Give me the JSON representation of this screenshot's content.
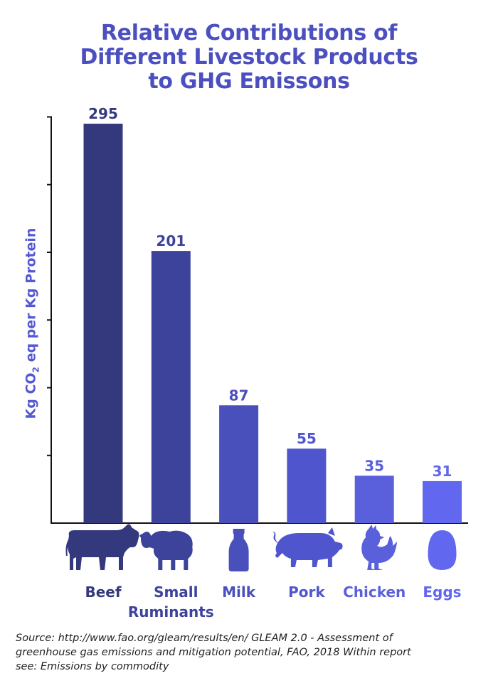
{
  "chart_data": {
    "type": "bar",
    "title_lines": [
      "Relative Contributions of",
      "Different Livestock Products",
      "to GHG Emissons"
    ],
    "ylabel_parts": [
      "Kg CO",
      "2",
      " eq per Kg Protein"
    ],
    "categories": [
      {
        "lines": [
          "Beef"
        ],
        "icon": "cow-icon",
        "color": "#34397d"
      },
      {
        "lines": [
          "Small",
          "Ruminants"
        ],
        "icon": "sheep-icon",
        "color": "#3d439b"
      },
      {
        "lines": [
          "Milk"
        ],
        "icon": "milk-bottle-icon",
        "color": "#4a50bb"
      },
      {
        "lines": [
          "Pork"
        ],
        "icon": "pig-icon",
        "color": "#4f55cc"
      },
      {
        "lines": [
          "Chicken"
        ],
        "icon": "chicken-icon",
        "color": "#5a60dc"
      },
      {
        "lines": [
          "Eggs"
        ],
        "icon": "egg-icon",
        "color": "#6267ef"
      }
    ],
    "values": [
      295,
      201,
      87,
      55,
      35,
      31
    ],
    "value_labels": [
      "295",
      "201",
      "87",
      "55",
      "35",
      "31"
    ],
    "ylim": [
      0,
      300
    ],
    "y_tick_step": 50,
    "grid": false
  },
  "source_lines": [
    "Source: http://www.fao.org/gleam/results/en/ GLEAM 2.0 - Assessment of",
    "greenhouse gas emissions and mitigation potential, FAO, 2018 Within report",
    "see: Emissions by commodity"
  ],
  "colors": {
    "title": "#4b4fbf",
    "axis": "#111111",
    "ylabel": "#5559d2"
  }
}
